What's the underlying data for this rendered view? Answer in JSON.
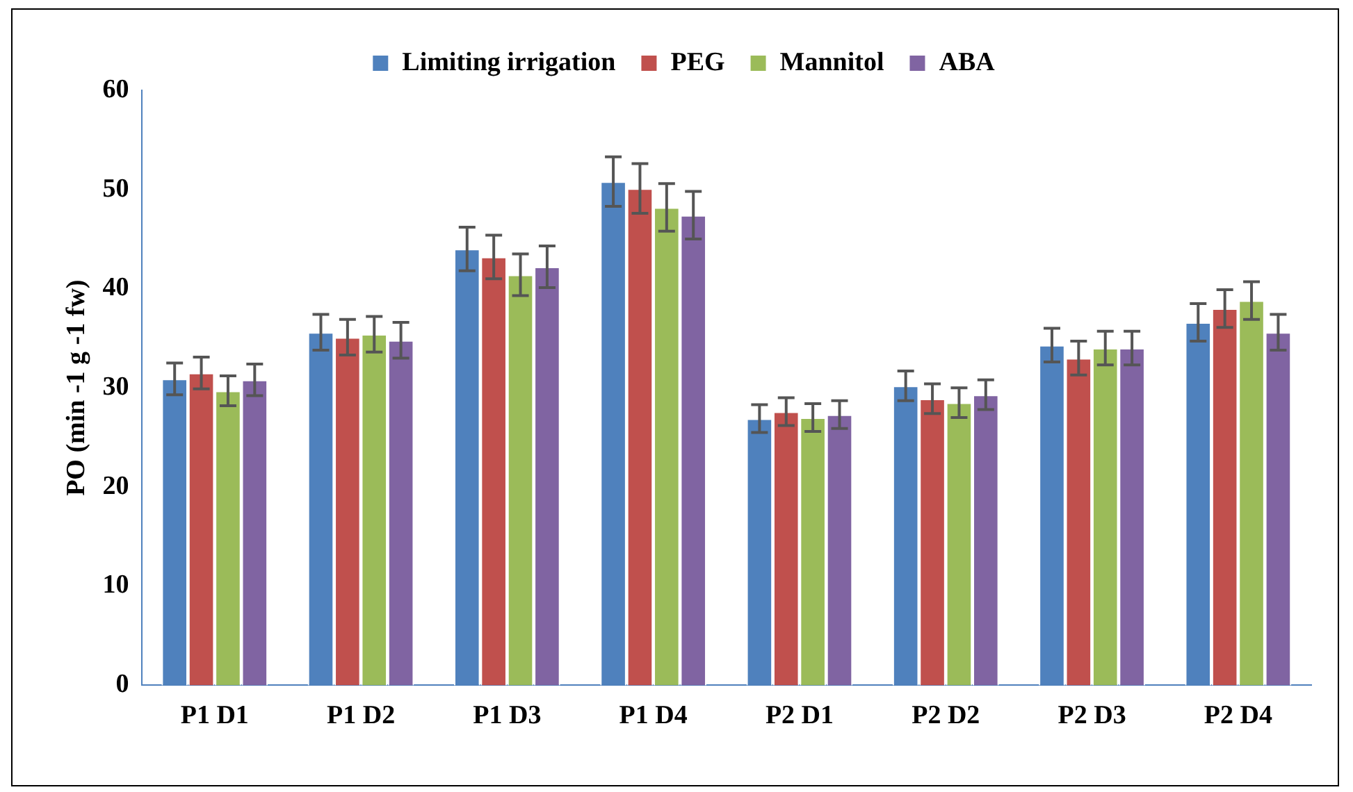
{
  "chart_data": {
    "type": "bar",
    "ylabel": "PO (min -1 g -1 fw)",
    "categories": [
      "P1 D1",
      "P1 D2",
      "P1 D3",
      "P1 D4",
      "P2 D1",
      "P2 D2",
      "P2 D3",
      "P2 D4"
    ],
    "series": [
      {
        "name": "Limiting irrigation",
        "color": "#4f81bd",
        "values": [
          30.9,
          35.6,
          44.0,
          50.8,
          26.9,
          30.2,
          34.3,
          36.6
        ],
        "errors": [
          1.6,
          1.8,
          2.2,
          2.5,
          1.4,
          1.5,
          1.7,
          1.9
        ]
      },
      {
        "name": "PEG",
        "color": "#c0504d",
        "values": [
          31.5,
          35.1,
          43.2,
          50.1,
          27.6,
          28.9,
          33.0,
          38.0
        ],
        "errors": [
          1.6,
          1.8,
          2.2,
          2.5,
          1.4,
          1.5,
          1.7,
          1.9
        ]
      },
      {
        "name": "Mannitol",
        "color": "#9bbb59",
        "values": [
          29.7,
          35.4,
          41.4,
          48.2,
          27.0,
          28.5,
          34.0,
          38.8
        ],
        "errors": [
          1.5,
          1.8,
          2.1,
          2.4,
          1.4,
          1.5,
          1.7,
          1.9
        ]
      },
      {
        "name": "ABA",
        "color": "#8064a2",
        "values": [
          30.8,
          34.8,
          42.2,
          47.4,
          27.3,
          29.3,
          34.0,
          35.6
        ],
        "errors": [
          1.6,
          1.8,
          2.1,
          2.4,
          1.4,
          1.5,
          1.7,
          1.8
        ]
      }
    ],
    "ylim": [
      0,
      60
    ],
    "yticks": [
      0,
      10,
      20,
      30,
      40,
      50,
      60
    ],
    "grid": false,
    "legend": "top"
  }
}
